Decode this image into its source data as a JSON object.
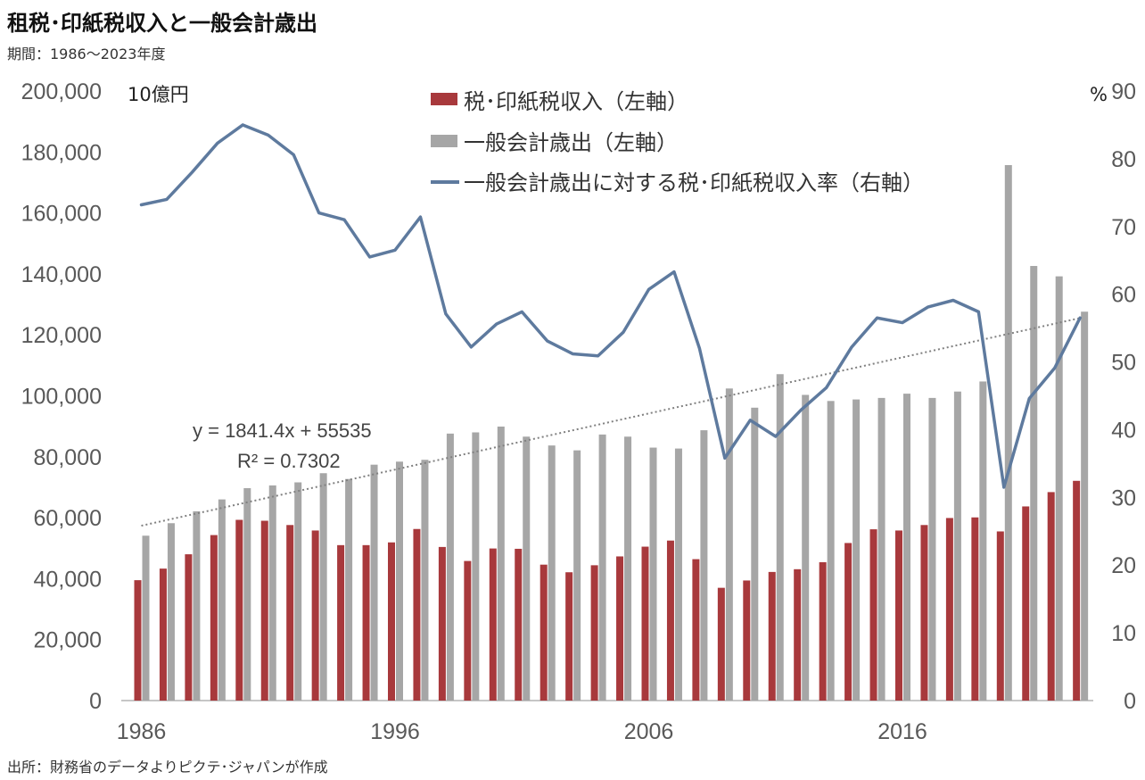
{
  "title": "租税･印紙税収入と一般会計歳出",
  "subtitle": "期間：1986～2023年度",
  "source": "出所：財務省のデータよりピクテ･ジャパンが作成",
  "chart_data": {
    "type": "bar",
    "left_axis_unit": "10億円",
    "right_axis_unit": "%",
    "left_ylim": [
      0,
      200000
    ],
    "left_yticks": [
      0,
      20000,
      40000,
      60000,
      80000,
      100000,
      120000,
      140000,
      160000,
      180000,
      200000
    ],
    "left_ytick_labels": [
      "0",
      "20,000",
      "40,000",
      "60,000",
      "80,000",
      "100,000",
      "120,000",
      "140,000",
      "160,000",
      "180,000",
      "200,000"
    ],
    "right_ylim": [
      0,
      90
    ],
    "right_yticks": [
      0,
      10,
      20,
      30,
      40,
      50,
      60,
      70,
      80,
      90
    ],
    "right_ytick_labels": [
      "0",
      "10",
      "20",
      "30",
      "40",
      "50",
      "60",
      "70",
      "80",
      "90"
    ],
    "x": [
      1986,
      1987,
      1988,
      1989,
      1990,
      1991,
      1992,
      1993,
      1994,
      1995,
      1996,
      1997,
      1998,
      1999,
      2000,
      2001,
      2002,
      2003,
      2004,
      2005,
      2006,
      2007,
      2008,
      2009,
      2010,
      2011,
      2012,
      2013,
      2014,
      2015,
      2016,
      2017,
      2018,
      2019,
      2020,
      2021,
      2022,
      2023
    ],
    "x_tick_labels": [
      "1986",
      "1996",
      "2006",
      "2016"
    ],
    "x_tick_years": [
      1986,
      1996,
      2006,
      2016
    ],
    "grid": false,
    "legend_position": "top-center",
    "series": [
      {
        "name": "税･印紙税収入（左軸）",
        "type": "bar",
        "axis": "left",
        "color": "#A8393C",
        "values": [
          39500,
          43300,
          48000,
          54300,
          59300,
          59000,
          57600,
          55800,
          51000,
          51000,
          51900,
          56300,
          50400,
          45800,
          49900,
          49800,
          44600,
          42100,
          44400,
          47300,
          50500,
          52500,
          46400,
          37000,
          39400,
          42200,
          43100,
          45400,
          51700,
          56200,
          55800,
          57600,
          59900,
          60100,
          55500,
          63700,
          68400,
          72100
        ]
      },
      {
        "name": "一般会計歳出（左軸）",
        "type": "bar",
        "axis": "left",
        "color": "#A6A6A6",
        "values": [
          54100,
          58200,
          62100,
          66000,
          69700,
          70600,
          71600,
          74600,
          72700,
          77400,
          78400,
          79000,
          87600,
          88000,
          89900,
          86600,
          83700,
          82100,
          87300,
          86600,
          83000,
          82700,
          88700,
          102400,
          96100,
          107100,
          100300,
          98300,
          98800,
          99300,
          100700,
          99300,
          101400,
          104700,
          175700,
          142600,
          139200,
          127600
        ]
      },
      {
        "name": "一般会計歳出に対する税･印紙税収入率（右軸）",
        "type": "line",
        "axis": "right",
        "color": "#5E7A9E",
        "values": [
          73.2,
          74.0,
          78.0,
          82.3,
          85.0,
          83.5,
          80.6,
          72.0,
          71.0,
          65.5,
          66.5,
          71.4,
          57.1,
          52.2,
          55.6,
          57.4,
          53.1,
          51.2,
          50.9,
          54.4,
          60.7,
          63.3,
          52.0,
          35.8,
          41.4,
          39.0,
          42.9,
          46.2,
          52.2,
          56.5,
          55.8,
          58.1,
          59.1,
          57.4,
          31.5,
          44.6,
          49.1,
          56.5
        ]
      }
    ],
    "trendline": {
      "applies_to": "一般会計歳出（左軸）",
      "equation": "y = 1841.4x + 55535",
      "r_squared": "R² = 0.7302",
      "slope": 1841.4,
      "intercept": 55535,
      "style": "dotted",
      "color": "#808080"
    }
  }
}
